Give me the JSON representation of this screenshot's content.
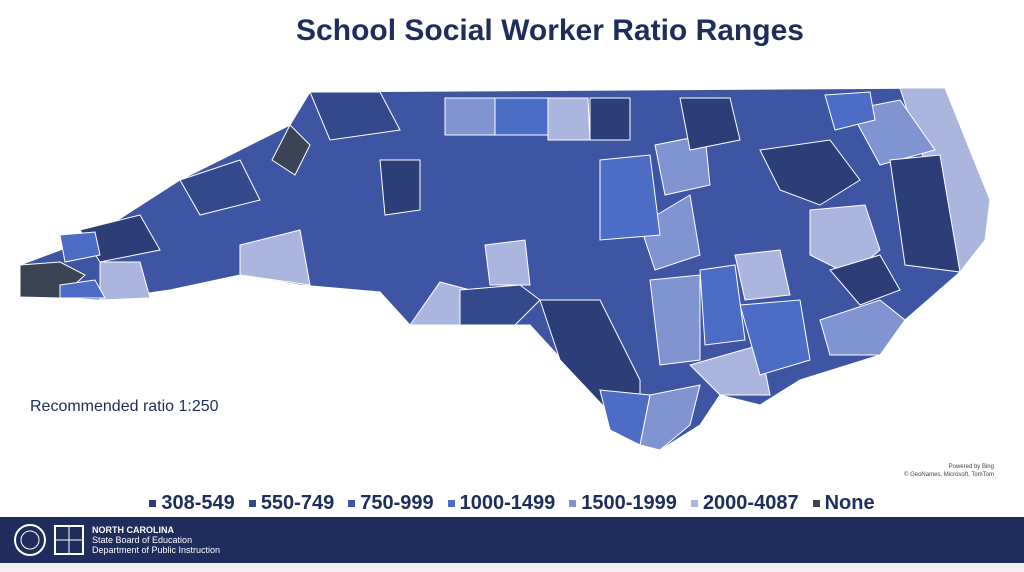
{
  "title": "School Social Worker Ratio Ranges",
  "note": "Recommended ratio 1:250",
  "legend": [
    {
      "label": "308-549",
      "color": "#2c3e78"
    },
    {
      "label": "550-749",
      "color": "#34488c"
    },
    {
      "label": "750-999",
      "color": "#3d55a3"
    },
    {
      "label": "1000-1499",
      "color": "#4c6cc6"
    },
    {
      "label": "1500-1999",
      "color": "#7f94d0"
    },
    {
      "label": "2000-4087",
      "color": "#aab6de"
    },
    {
      "label": "None",
      "color": "#3a4455"
    }
  ],
  "attribution": [
    "Powered by Bing",
    "© GeoNames, Microsoft, TomTom"
  ],
  "footer": {
    "line1": "NORTH CAROLINA",
    "line2": "State Board of Education",
    "line3": "Department of Public Instruction"
  }
}
